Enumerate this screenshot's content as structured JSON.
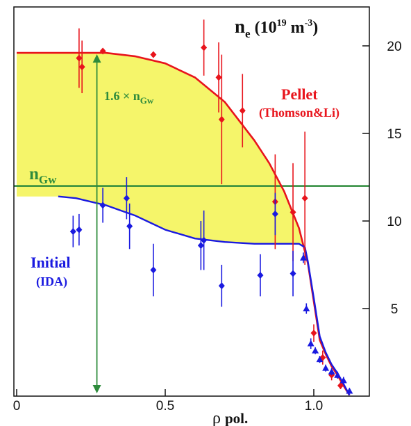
{
  "chart_data": {
    "type": "scatter",
    "title": "",
    "ylabel_main": "n",
    "ylabel_sub": "e",
    "ylabel_unit_open": " (10",
    "ylabel_unit_exp": "19",
    "ylabel_unit_m": " m",
    "ylabel_unit_exp2": "-3",
    "ylabel_unit_close": ")",
    "xlabel_rho": "ρ",
    "xlabel_pol": "pol.",
    "xlim": [
      0,
      1.2
    ],
    "ylim": [
      0,
      22.2
    ],
    "x_ticks": [
      {
        "value": 0,
        "label": "0"
      },
      {
        "value": 0.5,
        "label": "0.5"
      },
      {
        "value": 1.0,
        "label": "1.0"
      }
    ],
    "y_ticks": [
      {
        "value": 5,
        "label": "5"
      },
      {
        "value": 10,
        "label": "10"
      },
      {
        "value": 15,
        "label": "15"
      },
      {
        "value": 20,
        "label": "20"
      }
    ],
    "greenwald_level": 12.0,
    "annotations": {
      "gw_label_main": "n",
      "gw_label_sub": "Gw",
      "factor_label_pre": "1.6 × n",
      "factor_label_sub": "Gw",
      "pellet_label": "Pellet",
      "pellet_sub": "(Thomson&Li)",
      "initial_label": "Initial",
      "initial_sub": "(IDA)"
    },
    "colors": {
      "pellet": "#e8141c",
      "initial": "#1a1ae0",
      "greenwald": "#2e8b3c",
      "fill": "#f5f56a"
    },
    "series": [
      {
        "name": "Pellet",
        "kind": "fit",
        "x": [
          0,
          0.3,
          0.4,
          0.5,
          0.6,
          0.7,
          0.8,
          0.85,
          0.9,
          0.95,
          0.98,
          1.0,
          1.02,
          1.04,
          1.06,
          1.08,
          1.1,
          1.12
        ],
        "y": [
          19.6,
          19.6,
          19.4,
          19.0,
          18.2,
          16.8,
          14.6,
          13.3,
          11.7,
          9.6,
          7.6,
          5.4,
          3.2,
          2.4,
          1.7,
          1.2,
          0.6,
          0.05
        ]
      },
      {
        "name": "Initial",
        "kind": "fit",
        "x": [
          0.14,
          0.2,
          0.25,
          0.3,
          0.35,
          0.4,
          0.45,
          0.5,
          0.6,
          0.7,
          0.8,
          0.9,
          0.95,
          0.97,
          0.98,
          1.0,
          1.02,
          1.04,
          1.06,
          1.08,
          1.1,
          1.12
        ],
        "y": [
          11.4,
          11.3,
          11.1,
          10.9,
          10.6,
          10.3,
          9.9,
          9.5,
          9.0,
          8.8,
          8.7,
          8.7,
          8.7,
          8.5,
          7.7,
          5.6,
          3.4,
          2.5,
          1.8,
          1.3,
          0.7,
          0.05
        ]
      },
      {
        "name": "Pellet (Thomson&Li) data",
        "kind": "points",
        "points": [
          {
            "x": 0.21,
            "y": 19.3,
            "err": 1.7
          },
          {
            "x": 0.22,
            "y": 18.8,
            "err": 1.5
          },
          {
            "x": 0.29,
            "y": 19.7,
            "err": 0
          },
          {
            "x": 0.46,
            "y": 19.5,
            "err": 0
          },
          {
            "x": 0.63,
            "y": 19.9,
            "err": 1.6
          },
          {
            "x": 0.68,
            "y": 18.2,
            "err": 2.0
          },
          {
            "x": 0.69,
            "y": 15.8,
            "err": 3.7
          },
          {
            "x": 0.76,
            "y": 16.3,
            "err": 2.1
          },
          {
            "x": 0.87,
            "y": 11.1,
            "err": 2.7
          },
          {
            "x": 0.93,
            "y": 10.5,
            "err": 2.8
          },
          {
            "x": 0.97,
            "y": 11.3,
            "err": 3.8
          },
          {
            "x": 1.0,
            "y": 3.6,
            "err": 0.5
          },
          {
            "x": 1.03,
            "y": 2.2,
            "err": 0.4
          },
          {
            "x": 1.06,
            "y": 1.2,
            "err": 0.3
          },
          {
            "x": 1.09,
            "y": 0.6,
            "err": 0.2
          }
        ]
      },
      {
        "name": "Initial (IDA) data",
        "kind": "points",
        "points": [
          {
            "x": 0.19,
            "y": 9.4,
            "err": 0.9
          },
          {
            "x": 0.21,
            "y": 9.5,
            "err": 0.9
          },
          {
            "x": 0.29,
            "y": 10.9,
            "err": 1.0
          },
          {
            "x": 0.37,
            "y": 11.3,
            "err": 1.2
          },
          {
            "x": 0.38,
            "y": 9.7,
            "err": 1.3
          },
          {
            "x": 0.46,
            "y": 7.2,
            "err": 1.5
          },
          {
            "x": 0.62,
            "y": 8.6,
            "err": 1.4
          },
          {
            "x": 0.63,
            "y": 8.9,
            "err": 1.7
          },
          {
            "x": 0.69,
            "y": 6.3,
            "err": 1.2
          },
          {
            "x": 0.82,
            "y": 6.9,
            "err": 1.2
          },
          {
            "x": 0.87,
            "y": 10.4,
            "err": 1.2
          },
          {
            "x": 0.93,
            "y": 7.0,
            "err": 1.3
          }
        ]
      },
      {
        "name": "Edge triangles",
        "kind": "points",
        "points": [
          {
            "x": 0.965,
            "y": 7.9,
            "err": 0.3
          },
          {
            "x": 0.975,
            "y": 5.0,
            "err": 0.3
          },
          {
            "x": 0.99,
            "y": 3.0,
            "err": 0.3
          },
          {
            "x": 1.005,
            "y": 2.6,
            "err": 0.2
          },
          {
            "x": 1.02,
            "y": 2.1,
            "err": 0.2
          },
          {
            "x": 1.04,
            "y": 1.6,
            "err": 0.2
          },
          {
            "x": 1.06,
            "y": 1.4,
            "err": 0.2
          },
          {
            "x": 1.08,
            "y": 1.2,
            "err": 0.2
          },
          {
            "x": 1.1,
            "y": 0.9,
            "err": 0.2
          },
          {
            "x": 1.12,
            "y": 0.3,
            "err": 0.1
          }
        ]
      }
    ],
    "factor_arrow_x": 0.27
  }
}
